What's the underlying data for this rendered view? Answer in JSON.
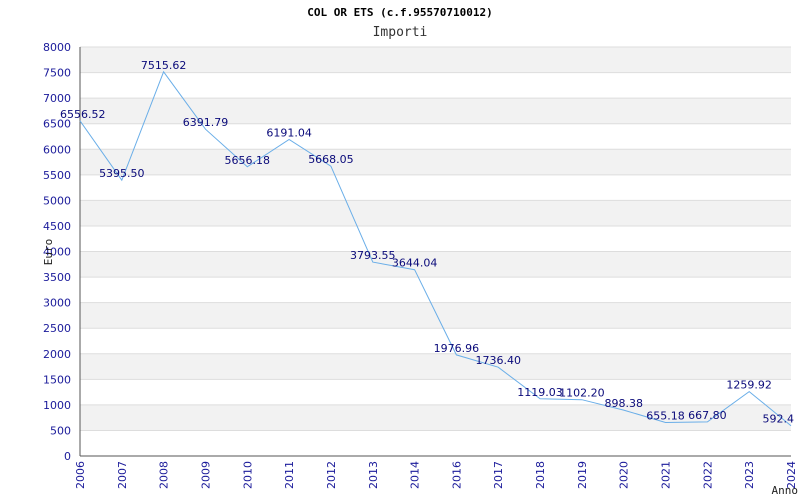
{
  "chart_data": {
    "type": "line",
    "title": "COL OR ETS (c.f.95570710012)",
    "subtitle": "Importi",
    "xlabel": "Anno",
    "ylabel": "Euro",
    "ylim": [
      0,
      8000
    ],
    "yticks": [
      0,
      500,
      1000,
      1500,
      2000,
      2500,
      3000,
      3500,
      4000,
      4500,
      5000,
      5500,
      6000,
      6500,
      7000,
      7500,
      8000
    ],
    "categories": [
      "2006",
      "2007",
      "2008",
      "2009",
      "2010",
      "2011",
      "2012",
      "2013",
      "2014",
      "2016",
      "2017",
      "2018",
      "2019",
      "2020",
      "2021",
      "2022",
      "2023",
      "2024"
    ],
    "values": [
      6556.52,
      5395.5,
      7515.62,
      6391.79,
      5656.18,
      6191.04,
      5668.05,
      3793.55,
      3644.04,
      1976.96,
      1736.4,
      1119.03,
      1102.2,
      898.38,
      655.18,
      667.8,
      1259.92,
      592.4
    ],
    "data_labels": [
      "6556.52",
      "5395.50",
      "7515.62",
      "6391.79",
      "5656.18",
      "6191.04",
      "5668.05",
      "3793.55",
      "3644.04",
      "1976.96",
      "1736.40",
      "1119.03",
      "1102.20",
      "898.38",
      "655.18",
      "667.80",
      "1259.92",
      "592.4"
    ],
    "grid": true,
    "colors": {
      "line": "#6aaee8",
      "band": "#f2f2f2",
      "grid": "#dddddd",
      "tick": "#1a1a9a"
    }
  }
}
